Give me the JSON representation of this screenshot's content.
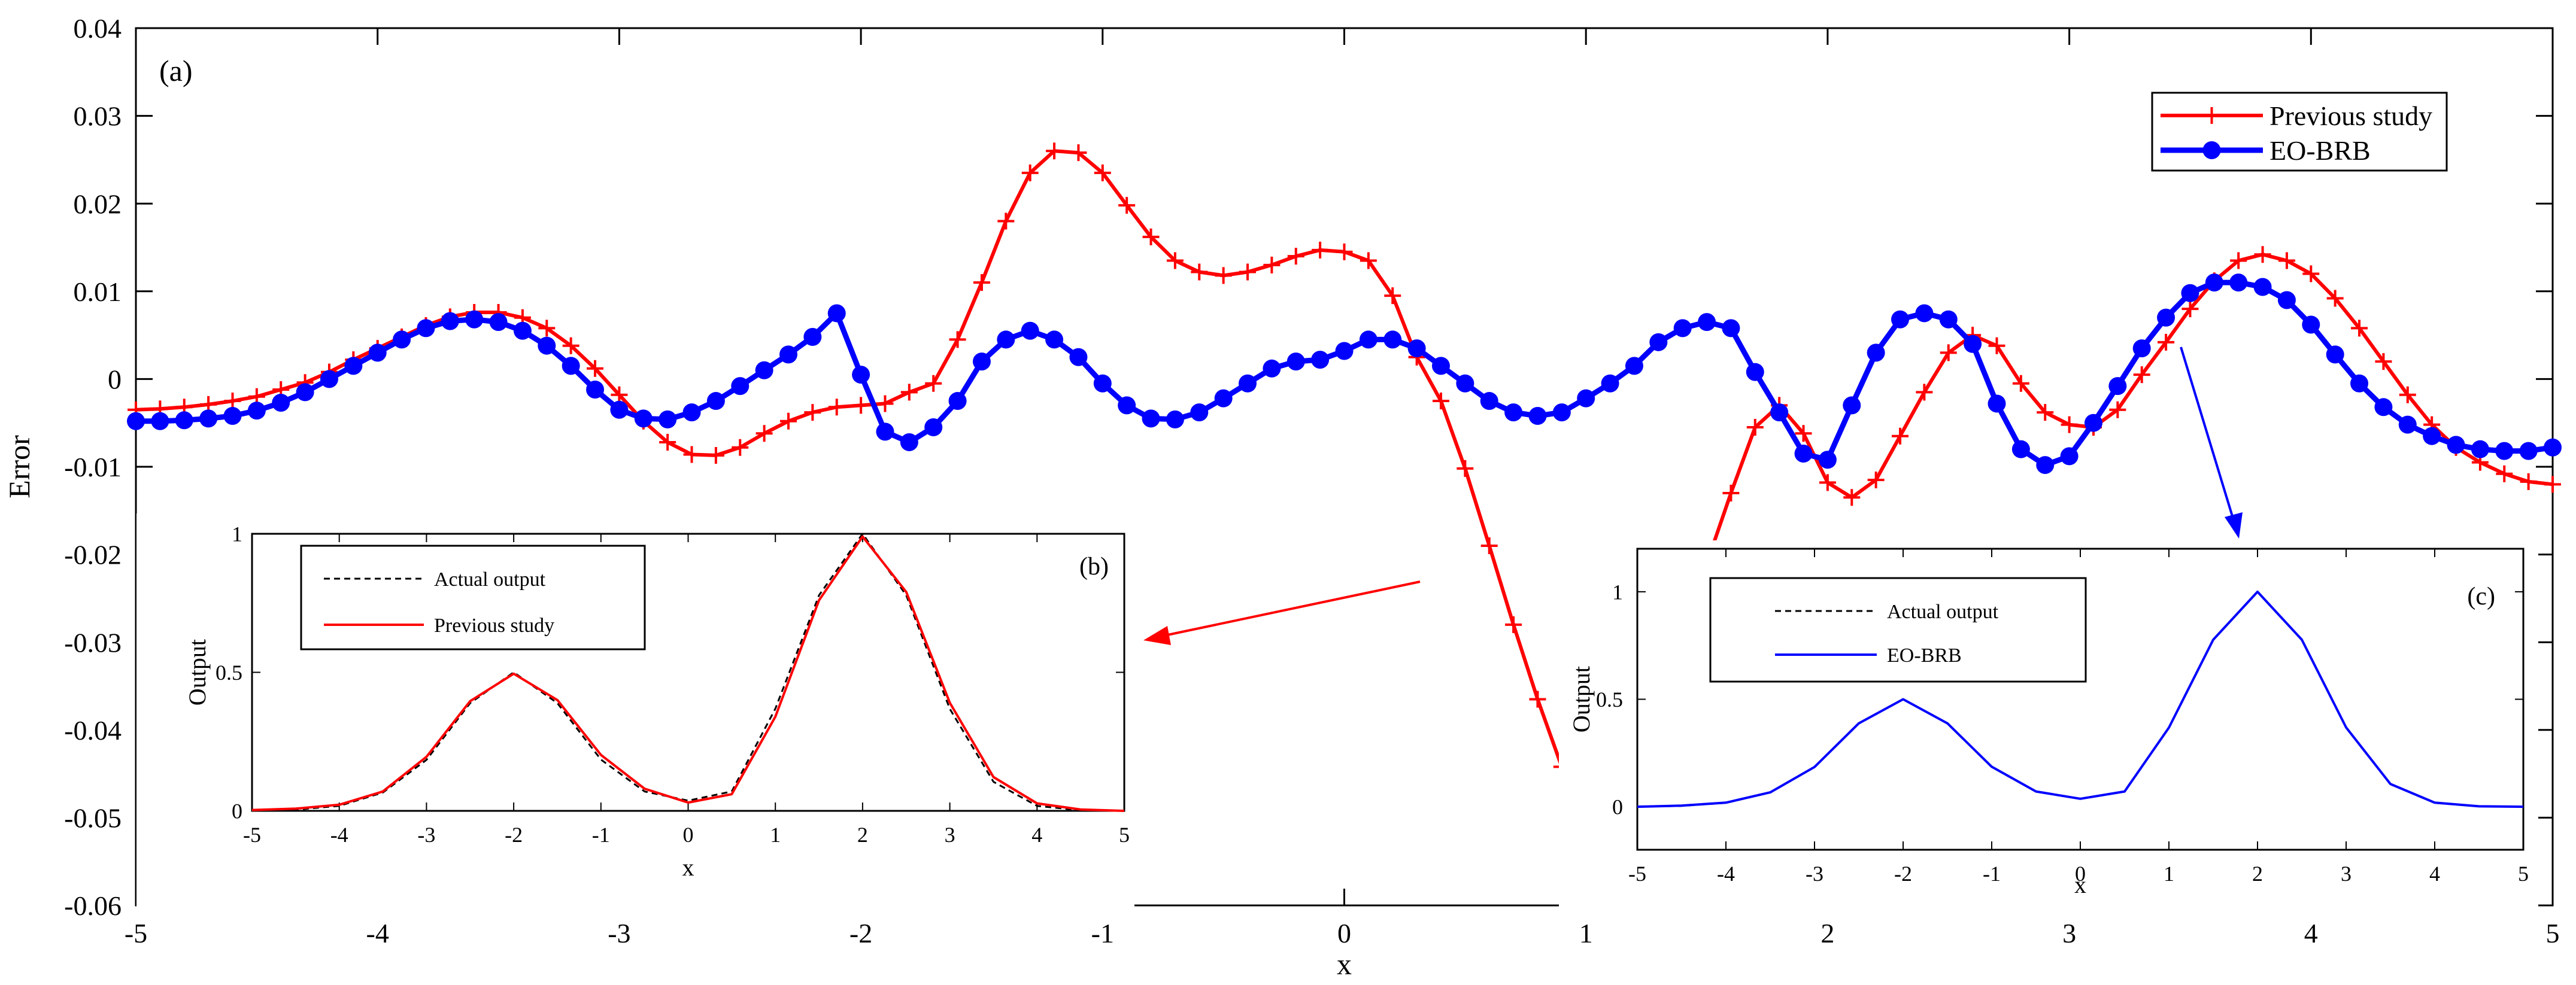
{
  "chart_data": [
    {
      "type": "line",
      "panel_label": "(a)",
      "xlabel": "x",
      "ylabel": "Error",
      "xlim": [
        -5,
        5
      ],
      "ylim": [
        -0.06,
        0.04
      ],
      "xticks": [
        "-5",
        "-4",
        "-3",
        "-2",
        "-1",
        "0",
        "1",
        "2",
        "3",
        "4",
        "5"
      ],
      "yticks": [
        "0.04",
        "0.03",
        "0.02",
        "0.01",
        "0",
        "-0.01",
        "-0.02",
        "-0.03",
        "-0.04",
        "-0.05",
        "-0.06"
      ],
      "legend_position": "top-right",
      "series": [
        {
          "name": "Previous study",
          "color": "#ff0000",
          "marker": "plus",
          "x": [
            -5.0,
            -4.9,
            -4.8,
            -4.7,
            -4.6,
            -4.5,
            -4.4,
            -4.3,
            -4.2,
            -4.1,
            -4.0,
            -3.9,
            -3.8,
            -3.7,
            -3.6,
            -3.5,
            -3.4,
            -3.3,
            -3.2,
            -3.1,
            -3.0,
            -2.9,
            -2.8,
            -2.7,
            -2.6,
            -2.5,
            -2.4,
            -2.3,
            -2.2,
            -2.1,
            -2.0,
            -1.9,
            -1.8,
            -1.7,
            -1.6,
            -1.5,
            -1.4,
            -1.3,
            -1.2,
            -1.1,
            -1.0,
            -0.9,
            -0.8,
            -0.7,
            -0.6,
            -0.5,
            -0.4,
            -0.3,
            -0.2,
            -0.1,
            0.0,
            0.1,
            0.2,
            0.3,
            0.4,
            0.5,
            0.6,
            0.7,
            0.8,
            0.9,
            1.0,
            1.1,
            1.2,
            1.3,
            1.4,
            1.5,
            1.6,
            1.7,
            1.8,
            1.9,
            2.0,
            2.1,
            2.2,
            2.3,
            2.4,
            2.5,
            2.6,
            2.7,
            2.8,
            2.9,
            3.0,
            3.1,
            3.2,
            3.3,
            3.4,
            3.5,
            3.6,
            3.7,
            3.8,
            3.9,
            4.0,
            4.1,
            4.2,
            4.3,
            4.4,
            4.5,
            4.6,
            4.7,
            4.8,
            4.9,
            5.0
          ],
          "y": [
            -0.0035,
            -0.0034,
            -0.0032,
            -0.0029,
            -0.0025,
            -0.002,
            -0.0012,
            -0.0004,
            0.0008,
            0.0022,
            0.0035,
            0.0048,
            0.0061,
            0.0071,
            0.0076,
            0.0076,
            0.007,
            0.0058,
            0.0038,
            0.0012,
            -0.0018,
            -0.0048,
            -0.0072,
            -0.0086,
            -0.0087,
            -0.0078,
            -0.0062,
            -0.0048,
            -0.0038,
            -0.0032,
            -0.003,
            -0.0028,
            -0.0015,
            -0.0005,
            0.0045,
            0.011,
            0.018,
            0.0235,
            0.026,
            0.0258,
            0.0235,
            0.0198,
            0.0162,
            0.0135,
            0.0122,
            0.0118,
            0.0122,
            0.013,
            0.014,
            0.0147,
            0.0145,
            0.0135,
            0.0095,
            0.0025,
            -0.0025,
            -0.0102,
            -0.019,
            -0.028,
            -0.0365,
            -0.0442,
            -0.0508,
            -0.0548,
            -0.053,
            -0.0455,
            -0.0335,
            -0.021,
            -0.013,
            -0.0055,
            -0.003,
            -0.0062,
            -0.0118,
            -0.0135,
            -0.0115,
            -0.0065,
            -0.0015,
            0.003,
            0.005,
            0.0038,
            -0.0005,
            -0.0038,
            -0.0052,
            -0.0055,
            -0.0035,
            0.0005,
            0.0042,
            0.008,
            0.0112,
            0.0135,
            0.0142,
            0.0135,
            0.012,
            0.0092,
            0.0058,
            0.002,
            -0.0018,
            -0.0052,
            -0.0078,
            -0.0095,
            -0.0108,
            -0.0117,
            -0.012
          ]
        },
        {
          "name": "EO-BRB",
          "color": "#0000ff",
          "marker": "circle",
          "x": [
            -5.0,
            -4.9,
            -4.8,
            -4.7,
            -4.6,
            -4.5,
            -4.4,
            -4.3,
            -4.2,
            -4.1,
            -4.0,
            -3.9,
            -3.8,
            -3.7,
            -3.6,
            -3.5,
            -3.4,
            -3.3,
            -3.2,
            -3.1,
            -3.0,
            -2.9,
            -2.8,
            -2.7,
            -2.6,
            -2.5,
            -2.4,
            -2.3,
            -2.2,
            -2.1,
            -2.0,
            -1.9,
            -1.8,
            -1.7,
            -1.6,
            -1.5,
            -1.4,
            -1.3,
            -1.2,
            -1.1,
            -1.0,
            -0.9,
            -0.8,
            -0.7,
            -0.6,
            -0.5,
            -0.4,
            -0.3,
            -0.2,
            -0.1,
            0.0,
            0.1,
            0.2,
            0.3,
            0.4,
            0.5,
            0.6,
            0.7,
            0.8,
            0.9,
            1.0,
            1.1,
            1.2,
            1.3,
            1.4,
            1.5,
            1.6,
            1.7,
            1.8,
            1.9,
            2.0,
            2.1,
            2.2,
            2.3,
            2.4,
            2.5,
            2.6,
            2.7,
            2.8,
            2.9,
            3.0,
            3.1,
            3.2,
            3.3,
            3.4,
            3.5,
            3.6,
            3.7,
            3.8,
            3.9,
            4.0,
            4.1,
            4.2,
            4.3,
            4.4,
            4.5,
            4.6,
            4.7,
            4.8,
            4.9,
            5.0
          ],
          "y": [
            -0.0048,
            -0.0048,
            -0.0047,
            -0.0045,
            -0.0042,
            -0.0036,
            -0.0027,
            -0.0015,
            0.0,
            0.0015,
            0.003,
            0.0045,
            0.0058,
            0.0066,
            0.0068,
            0.0065,
            0.0055,
            0.0038,
            0.0015,
            -0.0012,
            -0.0035,
            -0.0045,
            -0.0046,
            -0.0038,
            -0.0025,
            -0.0008,
            0.001,
            0.0028,
            0.0048,
            0.0075,
            0.0005,
            -0.006,
            -0.0072,
            -0.0055,
            -0.0025,
            0.002,
            0.0045,
            0.0055,
            0.0045,
            0.0025,
            -0.0005,
            -0.003,
            -0.0045,
            -0.0046,
            -0.0038,
            -0.0022,
            -0.0005,
            0.0012,
            0.002,
            0.0022,
            0.0032,
            0.0045,
            0.0045,
            0.0035,
            0.0015,
            -0.0005,
            -0.0025,
            -0.0038,
            -0.0042,
            -0.0038,
            -0.0022,
            -0.0005,
            0.0015,
            0.0042,
            0.0058,
            0.0065,
            0.0058,
            0.0008,
            -0.0038,
            -0.0085,
            -0.0092,
            -0.003,
            0.003,
            0.0068,
            0.0075,
            0.0068,
            0.004,
            -0.0028,
            -0.008,
            -0.0098,
            -0.0088,
            -0.005,
            -0.0008,
            0.0035,
            0.007,
            0.0098,
            0.011,
            0.011,
            0.0105,
            0.009,
            0.0062,
            0.0028,
            -0.0005,
            -0.0032,
            -0.0052,
            -0.0065,
            -0.0075,
            -0.008,
            -0.0082,
            -0.0082,
            -0.0078
          ]
        }
      ]
    },
    {
      "type": "line",
      "panel_label": "(b)",
      "xlabel": "x",
      "ylabel": "Output",
      "xlim": [
        -5,
        5
      ],
      "ylim": [
        0,
        1
      ],
      "xticks": [
        "-5",
        "-4",
        "-3",
        "-2",
        "-1",
        "0",
        "1",
        "2",
        "3",
        "4",
        "5"
      ],
      "yticks": [
        "1",
        "0.5",
        "0"
      ],
      "legend_position": "top-left",
      "series": [
        {
          "name": "Actual output",
          "color": "#000000",
          "dash": "dashed",
          "x": [
            -5.0,
            -4.5,
            -4.0,
            -3.5,
            -3.0,
            -2.5,
            -2.0,
            -1.5,
            -1.0,
            -0.5,
            0.0,
            0.5,
            1.0,
            1.5,
            2.0,
            2.5,
            3.0,
            3.5,
            4.0,
            4.5,
            5.0
          ],
          "y": [
            0.0,
            0.004,
            0.018,
            0.066,
            0.184,
            0.389,
            0.5,
            0.389,
            0.185,
            0.07,
            0.037,
            0.07,
            0.369,
            0.778,
            1.0,
            0.778,
            0.368,
            0.105,
            0.018,
            0.002,
            0.0
          ]
        },
        {
          "name": "Previous study",
          "color": "#ff0000",
          "dash": "solid",
          "x": [
            -5.0,
            -4.5,
            -4.0,
            -3.5,
            -3.0,
            -2.5,
            -2.0,
            -1.5,
            -1.0,
            -0.5,
            0.0,
            0.5,
            1.0,
            1.5,
            2.0,
            2.5,
            3.0,
            3.5,
            4.0,
            4.5,
            5.0
          ],
          "y": [
            0.003,
            0.008,
            0.022,
            0.07,
            0.195,
            0.396,
            0.495,
            0.4,
            0.202,
            0.08,
            0.03,
            0.06,
            0.34,
            0.76,
            0.99,
            0.79,
            0.39,
            0.122,
            0.027,
            0.005,
            0.0
          ]
        }
      ]
    },
    {
      "type": "line",
      "panel_label": "(c)",
      "xlabel": "x",
      "ylabel": "Output",
      "xlim": [
        -5,
        5
      ],
      "ylim": [
        -0.2,
        1.2
      ],
      "xticks": [
        "-5",
        "-4",
        "-3",
        "-2",
        "-1",
        "0",
        "1",
        "2",
        "3",
        "4",
        "5"
      ],
      "yticks": [
        "1",
        "0.5",
        "0"
      ],
      "legend_position": "top-left",
      "series": [
        {
          "name": "Actual output",
          "color": "#000000",
          "dash": "dashed",
          "x": [
            -5.0,
            -4.5,
            -4.0,
            -3.5,
            -3.0,
            -2.5,
            -2.0,
            -1.5,
            -1.0,
            -0.5,
            0.0,
            0.5,
            1.0,
            1.5,
            2.0,
            2.5,
            3.0,
            3.5,
            4.0,
            4.5,
            5.0
          ],
          "y": [
            0.0,
            0.004,
            0.018,
            0.066,
            0.184,
            0.389,
            0.5,
            0.389,
            0.185,
            0.07,
            0.037,
            0.07,
            0.369,
            0.778,
            1.0,
            0.778,
            0.368,
            0.105,
            0.018,
            0.002,
            0.0
          ]
        },
        {
          "name": "EO-BRB",
          "color": "#0000ff",
          "dash": "solid",
          "x": [
            -5.0,
            -4.5,
            -4.0,
            -3.5,
            -3.0,
            -2.5,
            -2.0,
            -1.5,
            -1.0,
            -0.5,
            0.0,
            0.5,
            1.0,
            1.5,
            2.0,
            2.5,
            3.0,
            3.5,
            4.0,
            4.5,
            5.0
          ],
          "y": [
            0.0,
            0.005,
            0.019,
            0.067,
            0.185,
            0.388,
            0.5,
            0.388,
            0.186,
            0.071,
            0.037,
            0.071,
            0.368,
            0.777,
            1.0,
            0.777,
            0.369,
            0.106,
            0.019,
            0.002,
            0.0
          ]
        }
      ]
    }
  ]
}
